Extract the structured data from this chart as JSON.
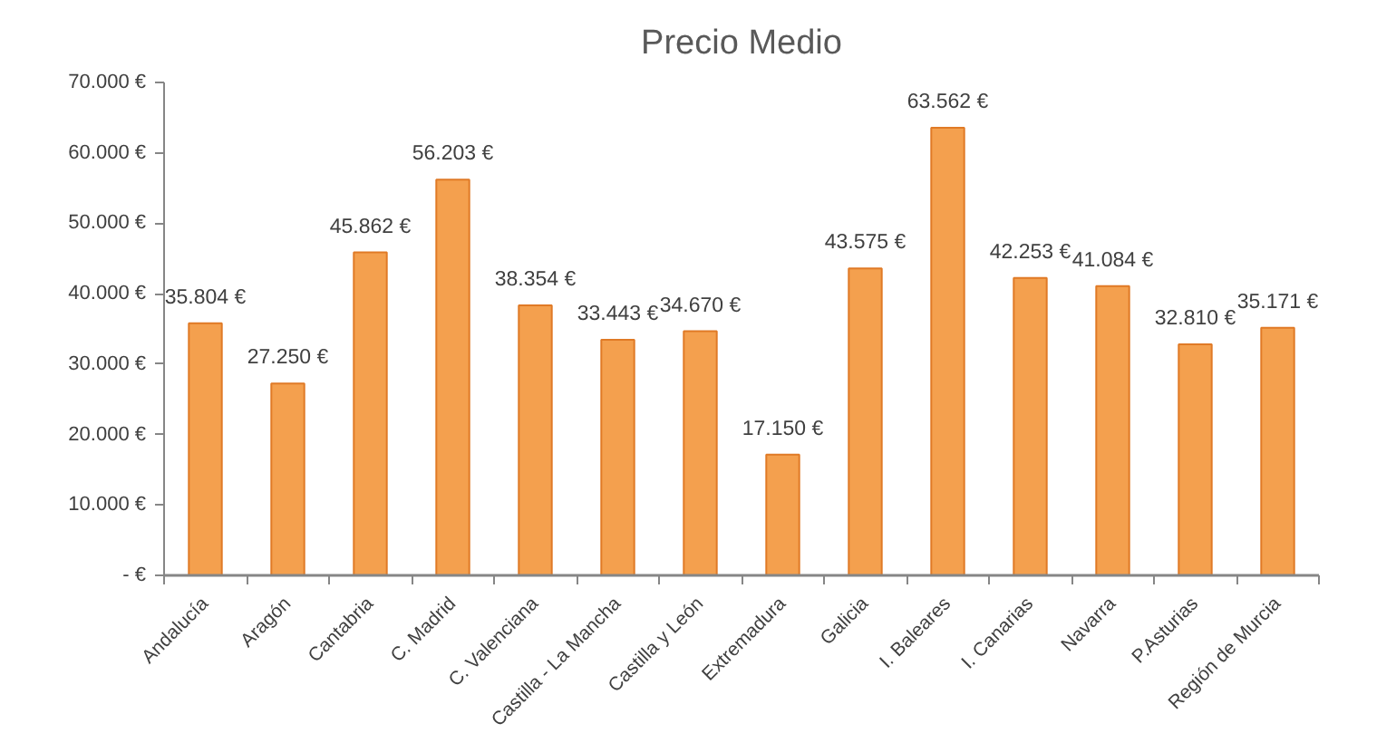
{
  "chart_data": {
    "type": "bar",
    "title": "Precio Medio",
    "categories": [
      "Andalucía",
      "Aragón",
      "Cantabria",
      "C. Madrid",
      "C. Valenciana",
      "Castilla - La Mancha",
      "Castilla y León",
      "Extremadura",
      "Galicia",
      "I. Baleares",
      "I. Canarias",
      "Navarra",
      "P.Asturias",
      "Región de Murcia"
    ],
    "values": [
      35804,
      27250,
      45862,
      56203,
      38354,
      33443,
      34670,
      17150,
      43575,
      63562,
      42253,
      41084,
      32810,
      35171
    ],
    "value_labels": [
      "35.804 €",
      "27.250 €",
      "45.862 €",
      "56.203 €",
      "38.354 €",
      "33.443 €",
      "34.670 €",
      "17.150 €",
      "43.575 €",
      "63.562 €",
      "42.253 €",
      "41.084 €",
      "32.810 €",
      "35.171 €"
    ],
    "color": "#f4a04e",
    "ylim": [
      0,
      70000
    ],
    "yticks": [
      {
        "value": 0,
        "label": "- €"
      },
      {
        "value": 10000,
        "label": "10.000 €"
      },
      {
        "value": 20000,
        "label": "20.000 €"
      },
      {
        "value": 30000,
        "label": "30.000 €"
      },
      {
        "value": 40000,
        "label": "40.000 €"
      },
      {
        "value": 50000,
        "label": "50.000 €"
      },
      {
        "value": 60000,
        "label": "60.000 €"
      },
      {
        "value": 70000,
        "label": "70.000 €"
      }
    ],
    "grid": false
  }
}
